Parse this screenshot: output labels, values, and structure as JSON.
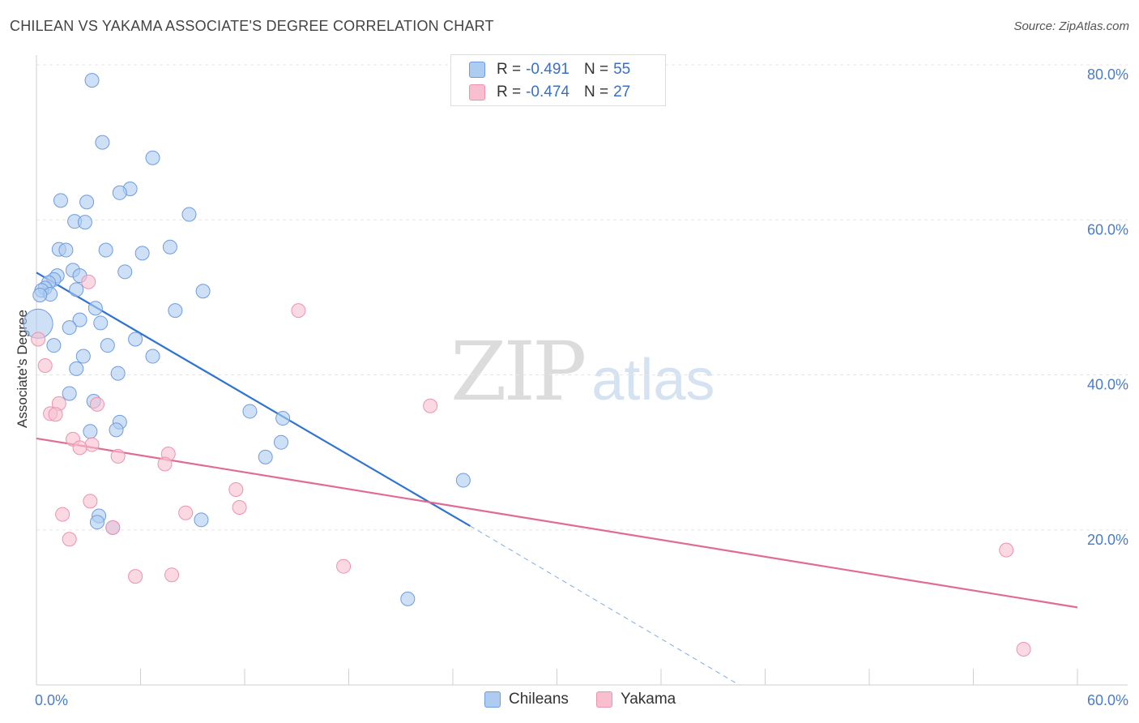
{
  "title": "CHILEAN VS YAKAMA ASSOCIATE'S DEGREE CORRELATION CHART",
  "source": "Source: ZipAtlas.com",
  "watermark": {
    "zip": "ZIP",
    "atlas": "atlas"
  },
  "legend": {
    "rows": [
      {
        "r_label": "R =",
        "r_value": "-0.491",
        "n_label": "N =",
        "n_value": "55"
      },
      {
        "r_label": "R =",
        "r_value": "-0.474",
        "n_label": "N =",
        "n_value": "27"
      }
    ]
  },
  "colors": {
    "chileans_fill": "#aecbf0",
    "chileans_stroke": "#6f9be0",
    "chileans_line": "#2f74d0",
    "yakama_fill": "#f7bfd0",
    "yakama_stroke": "#ec93ad",
    "yakama_line": "#e06b95",
    "tick_text": "#4a7cc9",
    "grid": "#e6e6e6"
  },
  "chart_data": {
    "type": "scatter",
    "title": "CHILEAN VS YAKAMA ASSOCIATE'S DEGREE CORRELATION CHART",
    "xlabel": "",
    "ylabel": "Associate's Degree",
    "xlim": [
      0,
      60
    ],
    "ylim": [
      0,
      80
    ],
    "x_tick_labels": [
      "0.0%",
      "60.0%"
    ],
    "y_ticks": [
      20,
      40,
      60,
      80
    ],
    "y_tick_labels": [
      "20.0%",
      "40.0%",
      "60.0%",
      "80.0%"
    ],
    "legend_position": "top-center",
    "series": [
      {
        "name": "Chileans",
        "r": -0.491,
        "n": 55,
        "trend": {
          "x0": 0,
          "y0": 53.2,
          "x1": 25,
          "y1": 20.5,
          "dash_x1": 40.5,
          "dash_y1": 0
        },
        "points": [
          [
            3.2,
            78.0
          ],
          [
            3.8,
            70.0
          ],
          [
            6.7,
            68.0
          ],
          [
            5.4,
            64.0
          ],
          [
            4.8,
            63.5
          ],
          [
            1.4,
            62.5
          ],
          [
            2.9,
            62.3
          ],
          [
            8.8,
            60.7
          ],
          [
            2.2,
            59.8
          ],
          [
            2.8,
            59.7
          ],
          [
            1.3,
            56.2
          ],
          [
            1.7,
            56.1
          ],
          [
            4.0,
            56.1
          ],
          [
            6.1,
            55.7
          ],
          [
            7.7,
            56.5
          ],
          [
            2.1,
            53.5
          ],
          [
            5.1,
            53.3
          ],
          [
            1.2,
            52.8
          ],
          [
            2.5,
            52.8
          ],
          [
            1.0,
            52.3
          ],
          [
            0.7,
            51.9
          ],
          [
            0.5,
            51.2
          ],
          [
            0.3,
            50.9
          ],
          [
            2.3,
            51.0
          ],
          [
            9.6,
            50.8
          ],
          [
            0.8,
            50.4
          ],
          [
            0.2,
            50.3
          ],
          [
            3.4,
            48.6
          ],
          [
            8.0,
            48.3
          ],
          [
            0.1,
            46.6
          ],
          [
            2.5,
            47.1
          ],
          [
            3.7,
            46.7
          ],
          [
            1.9,
            46.1
          ],
          [
            5.7,
            44.6
          ],
          [
            1.0,
            43.8
          ],
          [
            4.1,
            43.8
          ],
          [
            2.7,
            42.4
          ],
          [
            6.7,
            42.4
          ],
          [
            2.3,
            40.8
          ],
          [
            4.7,
            40.2
          ],
          [
            1.9,
            37.6
          ],
          [
            3.3,
            36.6
          ],
          [
            12.3,
            35.3
          ],
          [
            14.2,
            34.4
          ],
          [
            4.8,
            33.9
          ],
          [
            4.6,
            32.9
          ],
          [
            3.1,
            32.7
          ],
          [
            14.1,
            31.3
          ],
          [
            13.2,
            29.4
          ],
          [
            24.6,
            26.4
          ],
          [
            3.6,
            21.8
          ],
          [
            9.5,
            21.3
          ],
          [
            4.4,
            20.3
          ],
          [
            21.4,
            11.1
          ],
          [
            3.5,
            21.0
          ]
        ]
      },
      {
        "name": "Yakama",
        "r": -0.474,
        "n": 27,
        "trend": {
          "x0": 0,
          "y0": 31.8,
          "x1": 60,
          "y1": 10.0
        },
        "points": [
          [
            3.0,
            52.0
          ],
          [
            15.1,
            48.3
          ],
          [
            0.1,
            44.6
          ],
          [
            0.5,
            41.2
          ],
          [
            1.3,
            36.3
          ],
          [
            3.5,
            36.2
          ],
          [
            22.7,
            36.0
          ],
          [
            0.8,
            35.0
          ],
          [
            1.1,
            34.9
          ],
          [
            2.1,
            31.7
          ],
          [
            3.2,
            31.0
          ],
          [
            2.5,
            30.6
          ],
          [
            7.6,
            29.8
          ],
          [
            4.7,
            29.5
          ],
          [
            7.4,
            28.5
          ],
          [
            11.5,
            25.2
          ],
          [
            3.1,
            23.7
          ],
          [
            11.7,
            22.9
          ],
          [
            1.5,
            22.0
          ],
          [
            8.6,
            22.2
          ],
          [
            4.4,
            20.3
          ],
          [
            1.9,
            18.8
          ],
          [
            17.7,
            15.3
          ],
          [
            5.7,
            14.0
          ],
          [
            7.8,
            14.2
          ],
          [
            55.9,
            17.4
          ],
          [
            56.9,
            4.6
          ]
        ]
      }
    ]
  },
  "bottom_legend": {
    "items": [
      "Chileans",
      "Yakama"
    ]
  }
}
